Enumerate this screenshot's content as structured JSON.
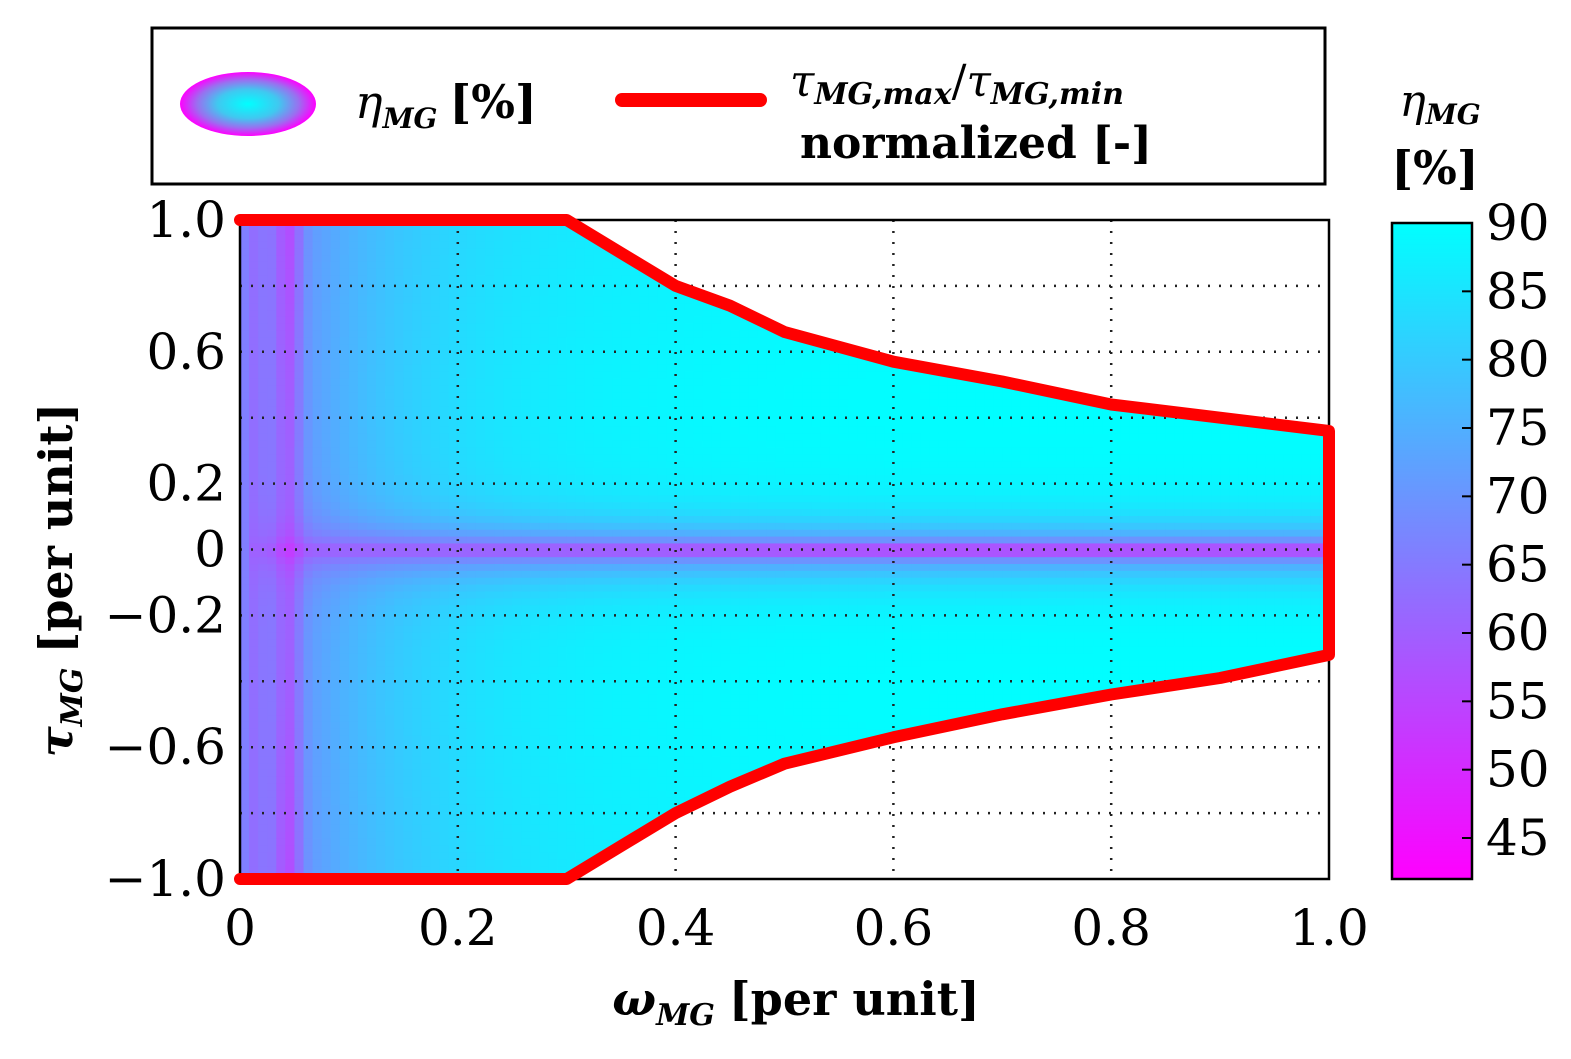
{
  "chart_data": {
    "type": "heatmap",
    "title": "",
    "xlabel": {
      "symbol": "ω",
      "subscript": "MG",
      "unit": "[per unit]"
    },
    "ylabel": {
      "symbol": "τ",
      "subscript": "MG",
      "unit": "[per unit]"
    },
    "xlim": [
      0,
      1.0
    ],
    "ylim": [
      -1.0,
      1.0
    ],
    "x_ticks": [
      0,
      0.2,
      0.4,
      0.6,
      0.8,
      1.0
    ],
    "x_tick_labels": [
      "0",
      "0.2",
      "0.4",
      "0.6",
      "0.8",
      "1.0"
    ],
    "y_ticks": [
      1.0,
      0.6,
      0.2,
      0,
      -0.2,
      -0.6,
      -1.0
    ],
    "y_tick_labels": [
      "1.0",
      "0.6",
      "0.2",
      "0",
      "−0.2",
      "−0.6",
      "−1.0"
    ],
    "grid_x": [
      0.2,
      0.4,
      0.6,
      0.8
    ],
    "grid_y": [
      0.8,
      0.6,
      0.4,
      0.2,
      0,
      -0.2,
      -0.4,
      -0.6,
      -0.8
    ],
    "grid": "dotted",
    "legend": {
      "position": "top",
      "entries": [
        {
          "symbol": "η",
          "subscript": "MG",
          "suffix": "[%]",
          "kind": "contour-swatch"
        },
        {
          "line1_a": "τ",
          "line1_a_sub": "MG,max",
          "slash": "/",
          "line1_b": "τ",
          "line1_b_sub": "MG,min",
          "line2": "normalized [-]",
          "kind": "line",
          "color": "#ff0000"
        }
      ]
    },
    "colorbar": {
      "title_symbol": "η",
      "title_subscript": "MG",
      "title_unit": "[%]",
      "range": [
        42,
        90
      ],
      "ticks": [
        90,
        85,
        80,
        75,
        70,
        65,
        60,
        55,
        50,
        45
      ],
      "tick_labels": [
        "90",
        "85",
        "80",
        "75",
        "70",
        "65",
        "60",
        "55",
        "50",
        "45"
      ],
      "colormap": [
        "#ff00ff",
        "#00ffff"
      ]
    },
    "boundary": {
      "name": "τMG,max/τMG,min normalized",
      "color": "#ff0000",
      "upper": [
        [
          0,
          1.0
        ],
        [
          0.3,
          1.0
        ],
        [
          0.35,
          0.9
        ],
        [
          0.4,
          0.8
        ],
        [
          0.45,
          0.74
        ],
        [
          0.5,
          0.66
        ],
        [
          0.6,
          0.57
        ],
        [
          0.7,
          0.51
        ],
        [
          0.8,
          0.44
        ],
        [
          0.9,
          0.4
        ],
        [
          1.0,
          0.36
        ]
      ],
      "lower": [
        [
          0,
          -1.0
        ],
        [
          0.3,
          -1.0
        ],
        [
          0.35,
          -0.9
        ],
        [
          0.4,
          -0.8
        ],
        [
          0.45,
          -0.72
        ],
        [
          0.5,
          -0.65
        ],
        [
          0.6,
          -0.57
        ],
        [
          0.7,
          -0.5
        ],
        [
          0.8,
          -0.44
        ],
        [
          0.9,
          -0.39
        ],
        [
          1.0,
          -0.32
        ]
      ]
    },
    "efficiency_model": "max 90% in high-efficiency core (ω ≈ 0.3–1.0, |τ| ≈ 0.1–0.5); falls toward 60% at ω≈0.05 and near τ=0; ~45% minimum at ω≈0.04",
    "efficiency_range": [
      45,
      90
    ]
  },
  "colors": {
    "boundary": "#ff0000",
    "cmap_low": "#ff00ff",
    "cmap_high": "#00ffff",
    "frame": "#000000"
  }
}
